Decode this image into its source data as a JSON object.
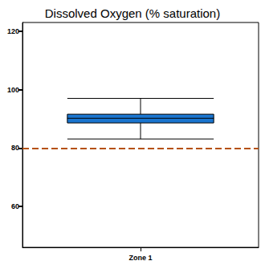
{
  "chart_data": {
    "type": "boxplot",
    "title": "Dissolved Oxygen (% saturation)",
    "categories": [
      "Zone 1"
    ],
    "values": [
      [
        83.1,
        88.6,
        90.2,
        91.6,
        97.0
      ]
    ],
    "color": "#1a75cf",
    "ylim": [
      46,
      123
    ],
    "yticks": [
      60,
      80,
      100,
      120
    ],
    "grid": false,
    "hline": {
      "value": 80,
      "color": "#b5500b",
      "line_style": "dashed"
    }
  }
}
